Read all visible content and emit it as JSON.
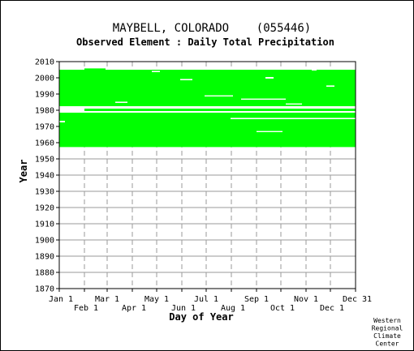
{
  "chart_data": {
    "type": "heatmap",
    "title": "MAYBELL, COLORADO    (055446)",
    "subtitle": "Observed Element : Daily Total Precipitation",
    "xlabel": "Day of Year",
    "ylabel": "Year",
    "xlim": [
      1,
      366
    ],
    "ylim": [
      1870,
      2010
    ],
    "y_ticks": [
      1870,
      1880,
      1890,
      1900,
      1910,
      1920,
      1930,
      1940,
      1950,
      1960,
      1970,
      1980,
      1990,
      2000,
      2010
    ],
    "x_ticks_top_row": [
      {
        "label": "Jan 1",
        "day": 1
      },
      {
        "label": "Mar 1",
        "day": 60
      },
      {
        "label": "May 1",
        "day": 121
      },
      {
        "label": "Jul 1",
        "day": 182
      },
      {
        "label": "Sep 1",
        "day": 244
      },
      {
        "label": "Nov 1",
        "day": 305
      },
      {
        "label": "Dec 31",
        "day": 366
      }
    ],
    "x_ticks_bottom_row": [
      {
        "label": "Feb 1",
        "day": 32
      },
      {
        "label": "Apr 1",
        "day": 91
      },
      {
        "label": "Jun 1",
        "day": 152
      },
      {
        "label": "Aug 1",
        "day": 213
      },
      {
        "label": "Oct 1",
        "day": 274
      },
      {
        "label": "Dec 1",
        "day": 335
      }
    ],
    "grid": true,
    "data_color": "#00ff00",
    "coverage_bands": [
      {
        "day_start": 1,
        "day_end": 366,
        "year_start": 1957.3,
        "year_end": 1978.5
      },
      {
        "day_start": 1,
        "day_end": 366,
        "year_start": 1979.5,
        "year_end": 1981.0
      },
      {
        "day_start": 1,
        "day_end": 366,
        "year_start": 1982.5,
        "year_end": 2005.0
      },
      {
        "day_start": 32,
        "day_end": 58,
        "year_start": 2005.0,
        "year_end": 2005.8
      }
    ],
    "gaps": [
      {
        "day_start": 1,
        "day_end": 366,
        "year_start": 1978.5,
        "year_end": 1979.5
      },
      {
        "day_start": 1,
        "day_end": 366,
        "year_start": 1981.0,
        "year_end": 1982.5
      },
      {
        "day_start": 1,
        "day_end": 8,
        "year_start": 1972.5,
        "year_end": 1973.5
      },
      {
        "day_start": 212,
        "day_end": 366,
        "year_start": 1974.5,
        "year_end": 1975.3
      },
      {
        "day_start": 244,
        "day_end": 276,
        "year_start": 1966.5,
        "year_end": 1967.2
      },
      {
        "day_start": 1,
        "day_end": 32,
        "year_start": 1979.5,
        "year_end": 1981.0
      },
      {
        "day_start": 70,
        "day_end": 85,
        "year_start": 1984.5,
        "year_end": 1985.3
      },
      {
        "day_start": 180,
        "day_end": 215,
        "year_start": 1988.5,
        "year_end": 1989.2
      },
      {
        "day_start": 225,
        "day_end": 280,
        "year_start": 1986.5,
        "year_end": 1987.2
      },
      {
        "day_start": 280,
        "day_end": 300,
        "year_start": 1983.5,
        "year_end": 1984.2
      },
      {
        "day_start": 115,
        "day_end": 125,
        "year_start": 2003.5,
        "year_end": 2004.3
      },
      {
        "day_start": 150,
        "day_end": 165,
        "year_start": 1998.5,
        "year_end": 1999.3
      },
      {
        "day_start": 255,
        "day_end": 265,
        "year_start": 1999.5,
        "year_end": 2000.5
      },
      {
        "day_start": 330,
        "day_end": 340,
        "year_start": 1994.5,
        "year_end": 1995.3
      },
      {
        "day_start": 312,
        "day_end": 318,
        "year_start": 2004.5,
        "year_end": 2005.0
      }
    ]
  },
  "credit": [
    "Western",
    "Regional",
    "Climate",
    "Center"
  ]
}
